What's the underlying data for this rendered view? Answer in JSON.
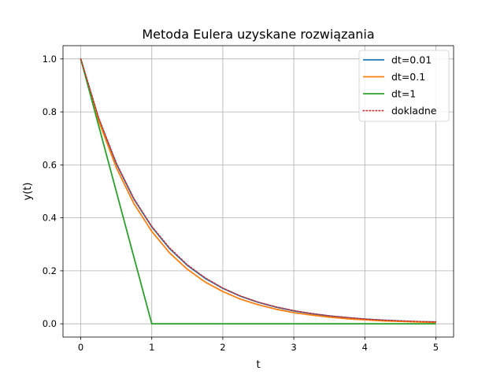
{
  "chart_data": {
    "type": "line",
    "title": "Metoda Eulera uzyskane rozwiązania",
    "xlabel": "t",
    "ylabel": "y(t)",
    "xlim": [
      -0.25,
      5.25
    ],
    "ylim": [
      -0.05,
      1.05
    ],
    "xticks": [
      0,
      1,
      2,
      3,
      4,
      5
    ],
    "yticks": [
      0.0,
      0.2,
      0.4,
      0.6,
      0.8,
      1.0
    ],
    "xtick_labels": [
      "0",
      "1",
      "2",
      "3",
      "4",
      "5"
    ],
    "ytick_labels": [
      "0.0",
      "0.2",
      "0.4",
      "0.6",
      "0.8",
      "1.0"
    ],
    "grid": true,
    "legend_position": "top-right",
    "series": [
      {
        "name": "dt=0.01",
        "color": "#1f77b4",
        "style": "solid",
        "x": [
          0,
          0.25,
          0.5,
          0.75,
          1,
          1.25,
          1.5,
          1.75,
          2,
          2.25,
          2.5,
          2.75,
          3,
          3.25,
          3.5,
          3.75,
          4,
          4.25,
          4.5,
          4.75,
          5
        ],
        "y": [
          1.0,
          0.777,
          0.605,
          0.47,
          0.366,
          0.284,
          0.221,
          0.172,
          0.134,
          0.104,
          0.081,
          0.063,
          0.049,
          0.038,
          0.03,
          0.023,
          0.018,
          0.014,
          0.011,
          0.008,
          0.007
        ]
      },
      {
        "name": "dt=0.1",
        "color": "#ff7f0e",
        "style": "solid",
        "x": [
          0,
          0.25,
          0.5,
          0.75,
          1,
          1.25,
          1.5,
          1.75,
          2,
          2.25,
          2.5,
          2.75,
          3,
          3.25,
          3.5,
          3.75,
          4,
          4.25,
          4.5,
          4.75,
          5
        ],
        "y": [
          1.0,
          0.768,
          0.59,
          0.453,
          0.349,
          0.268,
          0.206,
          0.158,
          0.122,
          0.093,
          0.072,
          0.055,
          0.042,
          0.033,
          0.025,
          0.019,
          0.015,
          0.011,
          0.009,
          0.007,
          0.005
        ]
      },
      {
        "name": "dt=1",
        "color": "#2ca02c",
        "style": "solid",
        "x": [
          0,
          1,
          2,
          3,
          4,
          5
        ],
        "y": [
          1.0,
          0.0,
          0.0,
          0.0,
          0.0,
          0.0
        ]
      },
      {
        "name": "dokladne",
        "color": "#d62728",
        "style": "dotted",
        "x": [
          0,
          0.25,
          0.5,
          0.75,
          1,
          1.25,
          1.5,
          1.75,
          2,
          2.25,
          2.5,
          2.75,
          3,
          3.25,
          3.5,
          3.75,
          4,
          4.25,
          4.5,
          4.75,
          5
        ],
        "y": [
          1.0,
          0.779,
          0.607,
          0.472,
          0.368,
          0.287,
          0.223,
          0.174,
          0.135,
          0.105,
          0.082,
          0.064,
          0.05,
          0.039,
          0.03,
          0.024,
          0.018,
          0.014,
          0.011,
          0.009,
          0.007
        ]
      }
    ]
  }
}
